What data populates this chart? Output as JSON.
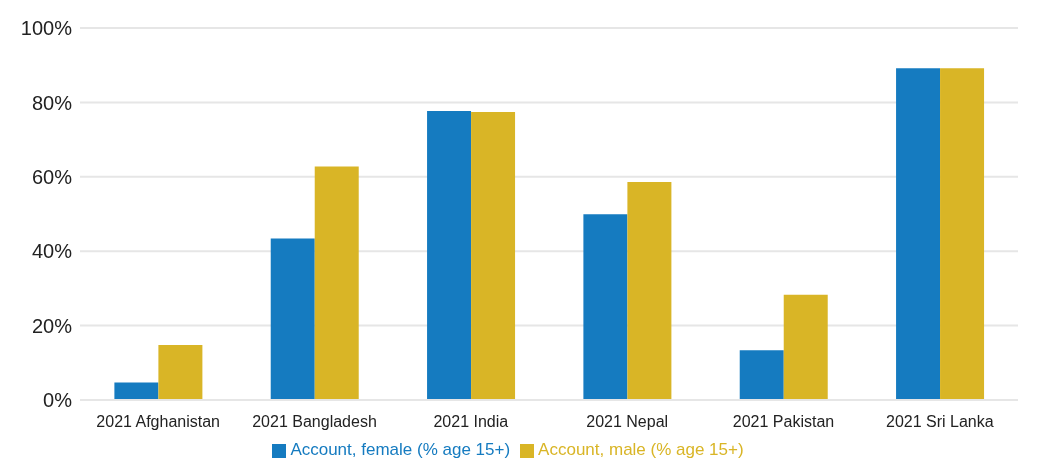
{
  "chart_data": {
    "type": "bar",
    "categories": [
      "2021 Afghanistan",
      "2021 Bangladesh",
      "2021 India",
      "2021 Nepal",
      "2021 Pakistan",
      "2021 Sri Lanka"
    ],
    "series": [
      {
        "name": "Account, female (% age 15+)",
        "color": "#157bc0",
        "values": [
          4.7,
          43.4,
          77.7,
          49.9,
          13.4,
          89.2
        ]
      },
      {
        "name": "Account, male (% age 15+)",
        "color": "#d9b526",
        "values": [
          14.8,
          62.8,
          77.4,
          58.6,
          28.3,
          89.2
        ]
      }
    ],
    "ylim": [
      0,
      100
    ],
    "yticks": [
      {
        "value": 0,
        "label": "0%"
      },
      {
        "value": 20,
        "label": "20%"
      },
      {
        "value": 40,
        "label": "40%"
      },
      {
        "value": 60,
        "label": "60%"
      },
      {
        "value": 80,
        "label": "80%"
      },
      {
        "value": 100,
        "label": "100%"
      }
    ],
    "grid": "y",
    "legend": "bottom"
  }
}
